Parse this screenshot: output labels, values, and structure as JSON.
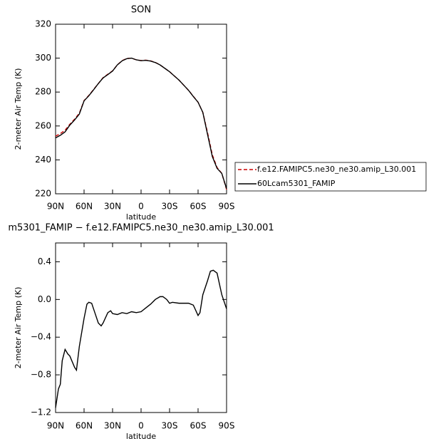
{
  "chart_data": [
    {
      "type": "line",
      "title": "SON",
      "xlabel": "latitude",
      "ylabel": "2-meter Air Temp (K)",
      "xlim": [
        90,
        -90
      ],
      "ylim": [
        220,
        320
      ],
      "xticks": [
        {
          "value": 90,
          "label": "90N"
        },
        {
          "value": 60,
          "label": "60N"
        },
        {
          "value": 30,
          "label": "30N"
        },
        {
          "value": 0,
          "label": "0"
        },
        {
          "value": -30,
          "label": "30S"
        },
        {
          "value": -60,
          "label": "60S"
        },
        {
          "value": -90,
          "label": "90S"
        }
      ],
      "yticks": [
        220,
        240,
        260,
        280,
        300,
        320
      ],
      "x": [
        90,
        85,
        80,
        75,
        70,
        65,
        60,
        55,
        50,
        45,
        40,
        35,
        30,
        25,
        20,
        15,
        10,
        5,
        0,
        -5,
        -10,
        -15,
        -20,
        -25,
        -30,
        -35,
        -40,
        -45,
        -50,
        -55,
        -60,
        -65,
        -70,
        -75,
        -80,
        -85,
        -90
      ],
      "legend": "right",
      "series": [
        {
          "name": "f.e12.FAMIPC5.ne30_ne30.amip_L30.001",
          "color": "#cc0000",
          "dash": true,
          "values": [
            254,
            255.5,
            257.5,
            261,
            264,
            267.5,
            275,
            278,
            281.5,
            285,
            288.5,
            290.5,
            292.5,
            296,
            298.5,
            299.8,
            300,
            299,
            298.6,
            298.8,
            298.4,
            297.5,
            296,
            294,
            292,
            289.5,
            287,
            284,
            281,
            277.5,
            274,
            268,
            256,
            243,
            235.5,
            232,
            222.5
          ]
        },
        {
          "name": "60Lcam5301_FAMIP",
          "color": "#000000",
          "dash": false,
          "values": [
            253,
            254.5,
            256.5,
            260.5,
            263.5,
            267,
            274.8,
            277.8,
            281.3,
            285,
            288.3,
            290.3,
            292.4,
            296,
            298.4,
            299.7,
            300,
            299,
            298.5,
            298.7,
            298.3,
            297.4,
            296,
            294,
            292,
            289.5,
            287,
            284,
            281,
            277.4,
            274,
            268,
            255,
            242,
            235,
            232,
            223
          ]
        }
      ]
    },
    {
      "type": "line",
      "title": "m5301_FAMIP − f.e12.FAMIPC5.ne30_ne30.amip_L30.001",
      "xlabel": "latitude",
      "ylabel": "2-meter Air Temp (K)",
      "xlim": [
        90,
        -90
      ],
      "ylim": [
        -1.2,
        0.6
      ],
      "xticks": [
        {
          "value": 90,
          "label": "90N"
        },
        {
          "value": 60,
          "label": "60N"
        },
        {
          "value": 30,
          "label": "30N"
        },
        {
          "value": 0,
          "label": "0"
        },
        {
          "value": -30,
          "label": "30S"
        },
        {
          "value": -60,
          "label": "60S"
        },
        {
          "value": -90,
          "label": "90S"
        }
      ],
      "yticks": [
        {
          "value": -1.2,
          "label": "−1.2"
        },
        {
          "value": -0.8,
          "label": "−0.8"
        },
        {
          "value": -0.4,
          "label": "−0.4"
        },
        {
          "value": 0,
          "label": "0.0"
        },
        {
          "value": 0.4,
          "label": "0.4"
        }
      ],
      "x": [
        90,
        87,
        85,
        83,
        80,
        77,
        75,
        70,
        68,
        65,
        60,
        57,
        55,
        52,
        50,
        45,
        42,
        40,
        35,
        32,
        30,
        25,
        20,
        15,
        10,
        5,
        0,
        -5,
        -10,
        -15,
        -20,
        -23,
        -27,
        -30,
        -33,
        -40,
        -50,
        -55,
        -60,
        -62,
        -65,
        -70,
        -73,
        -76,
        -80,
        -85,
        -90
      ],
      "series": [
        {
          "name": "60Lcam5301_FAMIP",
          "color": "#000000",
          "dash": false,
          "values": [
            -1.15,
            -0.95,
            -0.9,
            -0.65,
            -0.53,
            -0.58,
            -0.6,
            -0.72,
            -0.75,
            -0.5,
            -0.2,
            -0.05,
            -0.03,
            -0.04,
            -0.1,
            -0.25,
            -0.28,
            -0.25,
            -0.14,
            -0.12,
            -0.15,
            -0.16,
            -0.14,
            -0.15,
            -0.13,
            -0.14,
            -0.13,
            -0.09,
            -0.05,
            0.0,
            0.03,
            0.03,
            0.0,
            -0.04,
            -0.03,
            -0.04,
            -0.04,
            -0.06,
            -0.17,
            -0.14,
            0.05,
            0.2,
            0.3,
            0.31,
            0.28,
            0.05,
            -0.1
          ]
        }
      ]
    }
  ]
}
